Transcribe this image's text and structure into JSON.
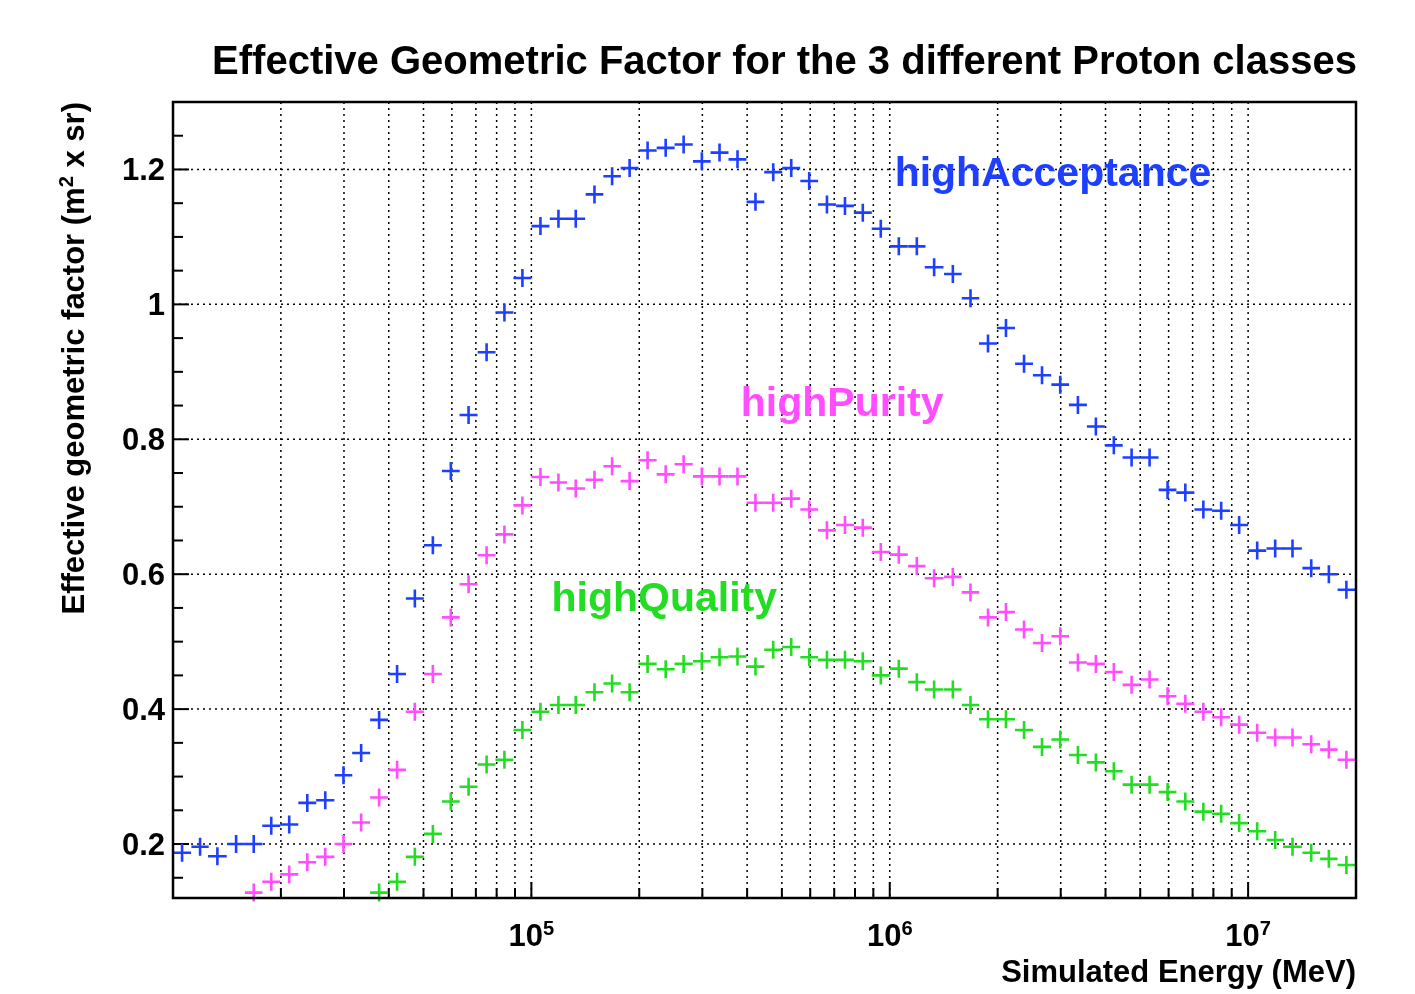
{
  "chart_data": {
    "type": "scatter",
    "title": "Effective Geometric Factor for the 3 different Proton classes",
    "xlabel": "Simulated Energy (MeV)",
    "ylabel": "Effective geometric factor (m$^{2}$ x sr)",
    "log": "x",
    "grid": true,
    "marker": "cross",
    "xlim": [
      10000,
      20000000
    ],
    "ylim": [
      0.12,
      1.3
    ],
    "xticks": [
      {
        "value": 20000,
        "label": null
      },
      {
        "value": 30000,
        "label": null
      },
      {
        "value": 40000,
        "label": null
      },
      {
        "value": 50000,
        "label": null
      },
      {
        "value": 60000,
        "label": null
      },
      {
        "value": 70000,
        "label": null
      },
      {
        "value": 80000,
        "label": null
      },
      {
        "value": 90000,
        "label": null
      },
      {
        "value": 100000,
        "label": "10$^{5}$"
      },
      {
        "value": 200000,
        "label": null
      },
      {
        "value": 300000,
        "label": null
      },
      {
        "value": 400000,
        "label": null
      },
      {
        "value": 500000,
        "label": null
      },
      {
        "value": 600000,
        "label": null
      },
      {
        "value": 700000,
        "label": null
      },
      {
        "value": 800000,
        "label": null
      },
      {
        "value": 900000,
        "label": null
      },
      {
        "value": 1000000,
        "label": "10$^{6}$"
      },
      {
        "value": 2000000,
        "label": null
      },
      {
        "value": 3000000,
        "label": null
      },
      {
        "value": 4000000,
        "label": null
      },
      {
        "value": 5000000,
        "label": null
      },
      {
        "value": 6000000,
        "label": null
      },
      {
        "value": 7000000,
        "label": null
      },
      {
        "value": 8000000,
        "label": null
      },
      {
        "value": 9000000,
        "label": null
      },
      {
        "value": 10000000,
        "label": "10$^{7}$"
      }
    ],
    "yticks": [
      {
        "value": 0.15,
        "label": null
      },
      0.2,
      {
        "value": 0.25,
        "label": null
      },
      {
        "value": 0.3,
        "label": null
      },
      {
        "value": 0.35,
        "label": null
      },
      0.4,
      {
        "value": 0.45,
        "label": null
      },
      {
        "value": 0.5,
        "label": null
      },
      {
        "value": 0.55,
        "label": null
      },
      0.6,
      {
        "value": 0.65,
        "label": null
      },
      {
        "value": 0.7,
        "label": null
      },
      {
        "value": 0.75,
        "label": null
      },
      0.8,
      {
        "value": 0.85,
        "label": null
      },
      {
        "value": 0.9,
        "label": null
      },
      {
        "value": 0.95,
        "label": null
      },
      1,
      {
        "value": 1.05,
        "label": null
      },
      {
        "value": 1.1,
        "label": null
      },
      {
        "value": 1.15,
        "label": null
      },
      1.2,
      {
        "value": 1.25,
        "label": null
      }
    ],
    "x": [
      10600,
      11900,
      13300,
      15000,
      16800,
      18800,
      21100,
      23700,
      26600,
      29900,
      33500,
      37600,
      42200,
      47300,
      53100,
      59600,
      66800,
      75000,
      84100,
      94400,
      106000,
      119000,
      133000,
      150000,
      168000,
      188000,
      211000,
      237000,
      266000,
      299000,
      335000,
      376000,
      422000,
      473000,
      531000,
      596000,
      668000,
      750000,
      841000,
      944000,
      1060000,
      1190000,
      1330000,
      1500000,
      1680000,
      1880000,
      2110000,
      2370000,
      2660000,
      2990000,
      3350000,
      3760000,
      4220000,
      4730000,
      5310000,
      5960000,
      6680000,
      7500000,
      8410000,
      9440000,
      10600000,
      11900000,
      13300000,
      15000000,
      16800000,
      18800000
    ],
    "series": [
      {
        "name": "highAcceptance",
        "color": "#1f3fff",
        "values": [
          0.187,
          0.196,
          0.182,
          0.2,
          0.2,
          0.227,
          0.229,
          0.261,
          0.265,
          0.302,
          0.335,
          0.384,
          0.452,
          0.564,
          0.643,
          0.753,
          0.836,
          0.929,
          0.988,
          1.039,
          1.116,
          1.127,
          1.127,
          1.163,
          1.19,
          1.202,
          1.228,
          1.232,
          1.237,
          1.212,
          1.225,
          1.215,
          1.152,
          1.196,
          1.202,
          1.183,
          1.148,
          1.146,
          1.136,
          1.112,
          1.086,
          1.086,
          1.055,
          1.045,
          1.009,
          0.942,
          0.965,
          0.912,
          0.895,
          0.881,
          0.851,
          0.819,
          0.791,
          0.773,
          0.773,
          0.725,
          0.721,
          0.696,
          0.694,
          0.673,
          0.635,
          0.638,
          0.638,
          0.609,
          0.6,
          0.577
        ]
      },
      {
        "name": "highPurity",
        "color": "#ff4dff",
        "values": [
          null,
          null,
          null,
          null,
          0.128,
          0.144,
          0.155,
          0.173,
          0.181,
          0.2,
          0.232,
          0.269,
          0.31,
          0.396,
          0.452,
          0.536,
          0.585,
          0.628,
          0.659,
          0.702,
          0.744,
          0.736,
          0.727,
          0.74,
          0.76,
          0.738,
          0.769,
          0.748,
          0.763,
          0.745,
          0.745,
          0.745,
          0.706,
          0.706,
          0.712,
          0.696,
          0.665,
          0.673,
          0.669,
          0.633,
          0.629,
          0.612,
          0.594,
          0.596,
          0.573,
          0.536,
          0.544,
          0.518,
          0.498,
          0.508,
          0.469,
          0.467,
          0.455,
          0.436,
          0.444,
          0.419,
          0.408,
          0.396,
          0.388,
          0.377,
          0.365,
          0.358,
          0.358,
          0.348,
          0.34,
          0.325
        ]
      },
      {
        "name": "highQuality",
        "color": "#22dd22",
        "values": [
          null,
          null,
          null,
          null,
          null,
          null,
          null,
          null,
          null,
          null,
          null,
          0.128,
          0.144,
          0.181,
          0.215,
          0.263,
          0.285,
          0.318,
          0.325,
          0.369,
          0.396,
          0.406,
          0.406,
          0.425,
          0.438,
          0.425,
          0.467,
          0.459,
          0.467,
          0.471,
          0.477,
          0.478,
          0.463,
          0.488,
          0.492,
          0.477,
          0.473,
          0.473,
          0.471,
          0.45,
          0.46,
          0.44,
          0.429,
          0.429,
          0.406,
          0.385,
          0.385,
          0.369,
          0.344,
          0.355,
          0.332,
          0.321,
          0.308,
          0.288,
          0.288,
          0.277,
          0.263,
          0.248,
          0.245,
          0.231,
          0.219,
          0.206,
          0.196,
          0.187,
          0.178,
          0.169
        ]
      }
    ]
  }
}
